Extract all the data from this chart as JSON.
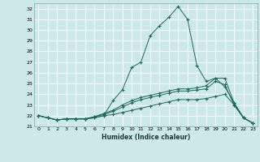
{
  "xlabel": "Humidex (Indice chaleur)",
  "xlim": [
    -0.5,
    23.5
  ],
  "ylim": [
    21.0,
    32.5
  ],
  "yticks": [
    21,
    22,
    23,
    24,
    25,
    26,
    27,
    28,
    29,
    30,
    31,
    32
  ],
  "xticks": [
    0,
    1,
    2,
    3,
    4,
    5,
    6,
    7,
    8,
    9,
    10,
    11,
    12,
    13,
    14,
    15,
    16,
    17,
    18,
    19,
    20,
    21,
    22,
    23
  ],
  "xtick_labels": [
    "0",
    "1",
    "2",
    "3",
    "4",
    "5",
    "6",
    "7",
    "8",
    "9",
    "10",
    "11",
    "12",
    "13",
    "14",
    "15",
    "16",
    "17",
    "18",
    "19",
    "20",
    "21",
    "22",
    "23"
  ],
  "bg_color": "#cce8e8",
  "grid_color": "#b0d4d4",
  "line_color": "#1a6b5a",
  "lines": [
    {
      "x": [
        0,
        1,
        2,
        3,
        4,
        5,
        6,
        7,
        8,
        9,
        10,
        11,
        12,
        13,
        14,
        15,
        16,
        17,
        18,
        19,
        20,
        21,
        22,
        23
      ],
      "y": [
        22.0,
        21.8,
        21.6,
        21.7,
        21.7,
        21.7,
        21.8,
        22.0,
        23.4,
        24.4,
        26.5,
        27.0,
        29.5,
        30.4,
        31.2,
        32.2,
        31.0,
        26.7,
        25.2,
        25.5,
        24.7,
        23.2,
        21.8,
        21.3
      ]
    },
    {
      "x": [
        0,
        1,
        2,
        3,
        4,
        5,
        6,
        7,
        8,
        9,
        10,
        11,
        12,
        13,
        14,
        15,
        16,
        17,
        18,
        19,
        20,
        21,
        22,
        23
      ],
      "y": [
        22.0,
        21.8,
        21.6,
        21.7,
        21.7,
        21.7,
        21.9,
        22.2,
        22.5,
        23.0,
        23.4,
        23.7,
        23.9,
        24.1,
        24.3,
        24.5,
        24.5,
        24.6,
        24.8,
        25.5,
        25.5,
        23.2,
        21.8,
        21.3
      ]
    },
    {
      "x": [
        0,
        1,
        2,
        3,
        4,
        5,
        6,
        7,
        8,
        9,
        10,
        11,
        12,
        13,
        14,
        15,
        16,
        17,
        18,
        19,
        20,
        21,
        22,
        23
      ],
      "y": [
        22.0,
        21.8,
        21.6,
        21.7,
        21.7,
        21.7,
        21.9,
        22.1,
        22.4,
        22.8,
        23.2,
        23.5,
        23.7,
        23.9,
        24.1,
        24.3,
        24.3,
        24.4,
        24.5,
        25.2,
        24.9,
        23.0,
        21.8,
        21.3
      ]
    },
    {
      "x": [
        0,
        1,
        2,
        3,
        4,
        5,
        6,
        7,
        8,
        9,
        10,
        11,
        12,
        13,
        14,
        15,
        16,
        17,
        18,
        19,
        20,
        21,
        22,
        23
      ],
      "y": [
        22.0,
        21.8,
        21.6,
        21.7,
        21.7,
        21.7,
        21.8,
        22.0,
        22.1,
        22.3,
        22.5,
        22.7,
        22.9,
        23.1,
        23.3,
        23.5,
        23.5,
        23.5,
        23.6,
        23.8,
        24.0,
        23.0,
        21.8,
        21.3
      ]
    }
  ]
}
